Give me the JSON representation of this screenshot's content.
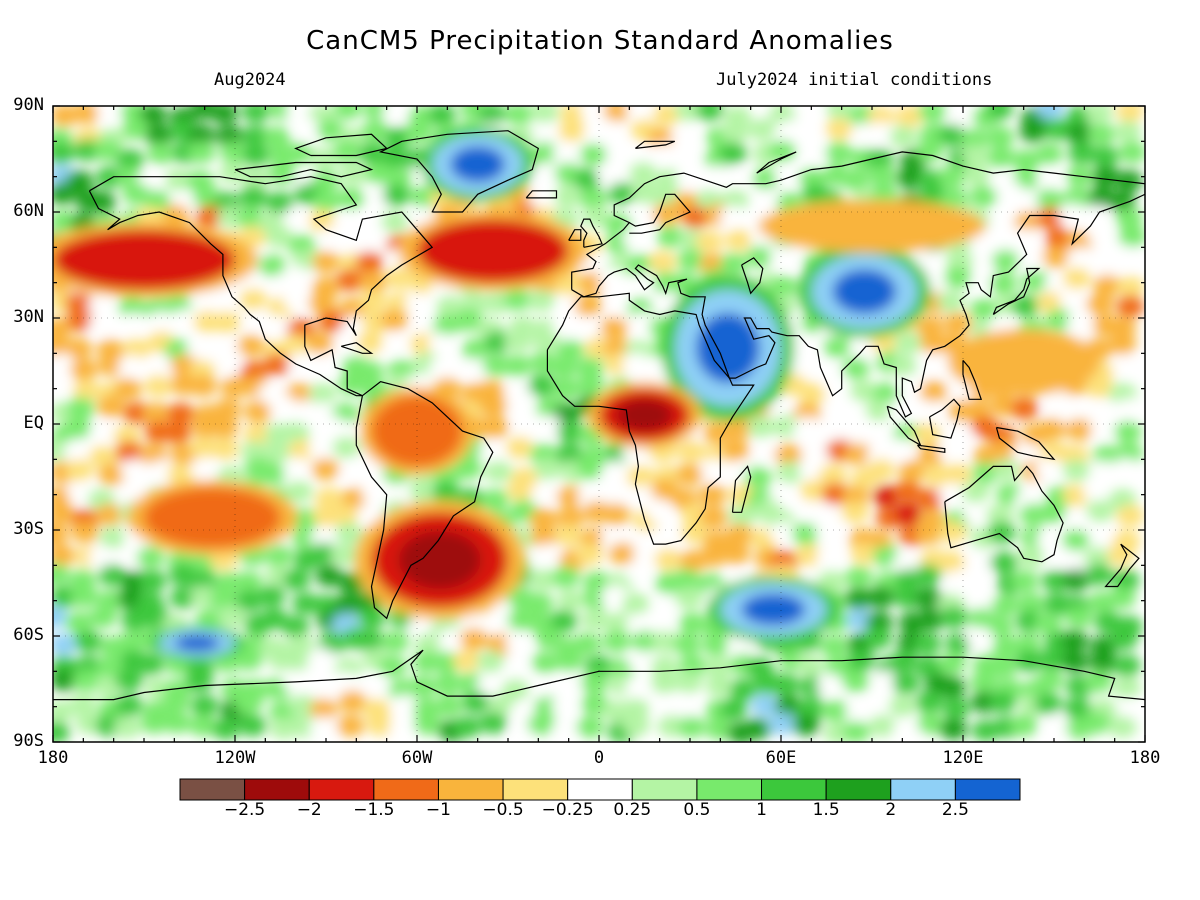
{
  "title": "CanCM5 Precipitation Standard Anomalies",
  "valid_month": "Aug2024",
  "initial_conditions": "July2024 initial conditions",
  "lat_labels": [
    "90N",
    "60N",
    "30N",
    "EQ",
    "30S",
    "60S",
    "90S"
  ],
  "lon_labels": [
    "180",
    "120W",
    "60W",
    "0",
    "60E",
    "120E",
    "180"
  ],
  "colorbar": {
    "colors": [
      "#7a5044",
      "#9e0b0b",
      "#d8190f",
      "#f06a18",
      "#f9b43c",
      "#fde17a",
      "#ffffff",
      "#b4f4a4",
      "#78ea6c",
      "#3cc83c",
      "#1ea01e",
      "#8fd0f6",
      "#1464d2"
    ],
    "labels": [
      "-2.5",
      "-2",
      "-1.5",
      "-1",
      "-0.5",
      "-0.25",
      "0.25",
      "0.5",
      "1",
      "1.5",
      "2",
      "2.5"
    ]
  },
  "chart_data": {
    "type": "heatmap",
    "title": "CanCM5 Precipitation Standard Anomalies",
    "xlim": [
      -180,
      180
    ],
    "ylim": [
      -90,
      90
    ],
    "levels": [
      -2.5,
      -2,
      -1.5,
      -1,
      -0.5,
      -0.25,
      0.25,
      0.5,
      1,
      1.5,
      2,
      2.5
    ],
    "anomaly_regions": [
      {
        "region": "Arabian Peninsula / NE Africa",
        "lon": [
          25,
          60
        ],
        "lat": [
          5,
          38
        ],
        "level": 2.5
      },
      {
        "region": "Central Asia",
        "lon": [
          70,
          105
        ],
        "lat": [
          27,
          48
        ],
        "level": 2.5
      },
      {
        "region": "Greenland",
        "lon": [
          -55,
          -25
        ],
        "lat": [
          65,
          82
        ],
        "level": 2.5
      },
      {
        "region": "Southern Indian Ocean",
        "lon": [
          40,
          75
        ],
        "lat": [
          -60,
          -45
        ],
        "level": 2.5
      },
      {
        "region": "South Pacific",
        "lon": [
          -145,
          -120
        ],
        "lat": [
          -66,
          -58
        ],
        "level": 2.5
      },
      {
        "region": "North Pacific",
        "lon": [
          -180,
          -120
        ],
        "lat": [
          38,
          55
        ],
        "level": -2
      },
      {
        "region": "North Atlantic",
        "lon": [
          -60,
          -10
        ],
        "lat": [
          40,
          58
        ],
        "level": -2
      },
      {
        "region": "Central Africa",
        "lon": [
          0,
          30
        ],
        "lat": [
          -5,
          10
        ],
        "level": -2.5
      },
      {
        "region": "South America / South Atlantic",
        "lon": [
          -75,
          -30
        ],
        "lat": [
          -52,
          -25
        ],
        "level": -2.5
      },
      {
        "region": "Amazon",
        "lon": [
          -75,
          -45
        ],
        "lat": [
          -12,
          8
        ],
        "level": -1.5
      },
      {
        "region": "South-central Pacific",
        "lon": [
          -150,
          -105
        ],
        "lat": [
          -35,
          -18
        ],
        "level": -1.5
      },
      {
        "region": "Western Pacific",
        "lon": [
          120,
          160
        ],
        "lat": [
          10,
          25
        ],
        "level": -1
      },
      {
        "region": "Eastern Siberia",
        "lon": [
          60,
          120
        ],
        "lat": [
          50,
          62
        ],
        "level": -1
      }
    ]
  }
}
